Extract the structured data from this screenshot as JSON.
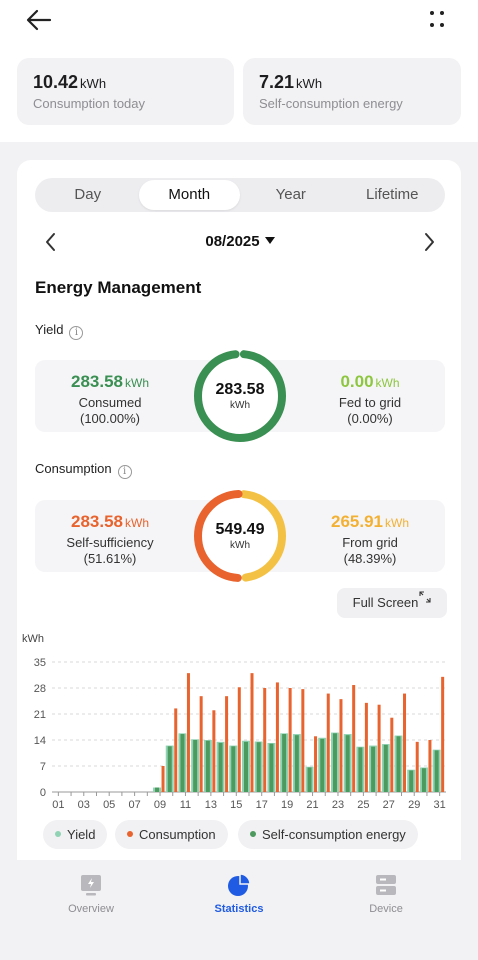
{
  "header": {
    "back_icon": "arrow-left-icon",
    "more_icon": "four-dots-icon"
  },
  "kpis": [
    {
      "value": "10.42",
      "unit": "kWh",
      "label": "Consumption today"
    },
    {
      "value": "7.21",
      "unit": "kWh",
      "label": "Self-consumption energy"
    }
  ],
  "tabs": [
    "Day",
    "Month",
    "Year",
    "Lifetime"
  ],
  "active_tab": "Month",
  "period": "08/2025",
  "section_title": "Energy Management",
  "yield": {
    "title": "Yield",
    "left_value": "283.58",
    "left_unit": "kWh",
    "left_label": "Consumed",
    "left_pct": "(100.00%)",
    "center_value": "283.58",
    "center_unit": "kWh",
    "right_value": "0.00",
    "right_unit": "kWh",
    "right_label": "Fed to grid",
    "right_pct": "(0.00%)"
  },
  "consumption": {
    "title": "Consumption",
    "left_value": "283.58",
    "left_unit": "kWh",
    "left_label": "Self-sufficiency",
    "left_pct": "(51.61%)",
    "center_value": "549.49",
    "center_unit": "kWh",
    "right_value": "265.91",
    "right_unit": "kWh",
    "right_label": "From grid",
    "right_pct": "(48.39%)"
  },
  "full_screen_label": "Full Screen",
  "colors": {
    "green": "#3a8f52",
    "orange": "#e8632d",
    "yellow": "#f3c244",
    "yield_bar": "#8fd3b4",
    "self_bar": "#4d9a5e",
    "accent_blue": "#1f5be3"
  },
  "chart_data": {
    "type": "bar",
    "ylabel": "kWh",
    "ylim": [
      0,
      35
    ],
    "yticks": [
      0,
      7,
      14,
      21,
      28,
      35
    ],
    "x": [
      "01",
      "02",
      "03",
      "04",
      "05",
      "06",
      "07",
      "08",
      "09",
      "10",
      "11",
      "12",
      "13",
      "14",
      "15",
      "16",
      "17",
      "18",
      "19",
      "20",
      "21",
      "22",
      "23",
      "24",
      "25",
      "26",
      "27",
      "28",
      "29",
      "30",
      "31"
    ],
    "xtick_labels": [
      "01",
      "03",
      "05",
      "07",
      "09",
      "11",
      "13",
      "15",
      "17",
      "19",
      "21",
      "23",
      "25",
      "27",
      "29",
      "31"
    ],
    "grid": true,
    "legend_position": "bottom",
    "series": [
      {
        "name": "Yield",
        "values": [
          0,
          0,
          0,
          0,
          0,
          0,
          0,
          0,
          1.2,
          12.5,
          15.8,
          14.2,
          14.0,
          13.5,
          12.5,
          13.8,
          13.6,
          13.2,
          15.8,
          15.6,
          6.8,
          14.6,
          16.0,
          15.6,
          12.2,
          12.5,
          12.9,
          15.2,
          6.0,
          6.6,
          11.4
        ]
      },
      {
        "name": "Consumption",
        "values": [
          0,
          0,
          0,
          0,
          0,
          0,
          0,
          0,
          7.0,
          22.5,
          32.0,
          25.8,
          22.0,
          25.8,
          28.2,
          32.0,
          28.0,
          29.5,
          28.0,
          27.7,
          15.0,
          26.5,
          25.0,
          28.8,
          24.0,
          23.5,
          20.0,
          26.5,
          13.5,
          14.0,
          31.0
        ]
      },
      {
        "name": "Self-consumption energy",
        "values": [
          0,
          0,
          0,
          0,
          0,
          0,
          0,
          0,
          1.2,
          12.3,
          15.6,
          14.0,
          13.8,
          13.2,
          12.3,
          13.5,
          13.4,
          13.0,
          15.6,
          15.3,
          6.6,
          14.3,
          15.8,
          15.3,
          12.0,
          12.2,
          12.7,
          15.0,
          5.8,
          6.4,
          11.2
        ]
      }
    ]
  },
  "nav": [
    {
      "label": "Overview",
      "icon": "monitor-icon"
    },
    {
      "label": "Statistics",
      "icon": "pie-chart-icon"
    },
    {
      "label": "Device",
      "icon": "server-icon"
    }
  ]
}
